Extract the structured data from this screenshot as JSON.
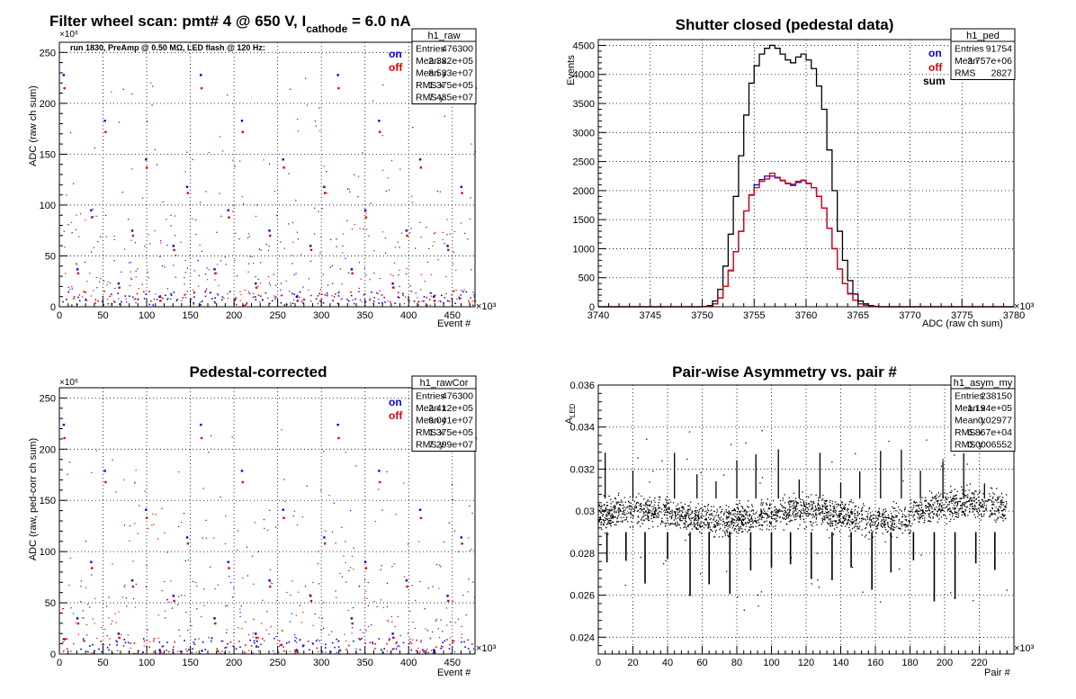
{
  "chart_data": [
    {
      "type": "scatter",
      "title": "Filter wheel scan: pmt#   4 @   650 V, I",
      "title_sub": "cathode",
      "title_tail": " = 6.0 nA",
      "subtitle": "run 1830, PreAmp @ 0.50 MΩ, LED flash @  120 Hz:",
      "xlabel": "Event #",
      "ylabel": "ADC (raw ch sum)",
      "x_exponent": "×10³",
      "y_exponent": "×10⁶",
      "xlim": [
        0,
        476
      ],
      "ylim": [
        0,
        260
      ],
      "xticks": [
        0,
        50,
        100,
        150,
        200,
        250,
        300,
        350,
        400,
        450
      ],
      "yticks": [
        0,
        50,
        100,
        150,
        200,
        250
      ],
      "grid": true,
      "legend": [
        {
          "label": "on",
          "color": "#0000dd"
        },
        {
          "label": "off",
          "color": "#dd0000"
        }
      ],
      "stats_box": {
        "name": "h1_raw",
        "rows": [
          [
            "Entries",
            "476300"
          ],
          [
            "Mean x",
            "2.382e+05"
          ],
          [
            "Mean y",
            "8.533e+07"
          ],
          [
            "RMS x",
            "1.375e+05"
          ],
          [
            "RMS y",
            "7.435e+07"
          ]
        ]
      },
      "levels_on": [
        228,
        183,
        145,
        118,
        95,
        75,
        60,
        37,
        23,
        10
      ],
      "levels_off": [
        215,
        172,
        137,
        112,
        88,
        70,
        56,
        33,
        19,
        6
      ]
    },
    {
      "type": "histogram",
      "title": "Shutter closed (pedestal data)",
      "xlabel": "ADC (raw ch sum)",
      "ylabel": "Events",
      "x_exponent": "×10³",
      "xlim": [
        3740,
        3780
      ],
      "ylim": [
        0,
        4600
      ],
      "xticks": [
        3740,
        3745,
        3750,
        3755,
        3760,
        3765,
        3770,
        3775,
        3780
      ],
      "yticks": [
        0,
        500,
        1000,
        1500,
        2000,
        2500,
        3000,
        3500,
        4000,
        4500
      ],
      "grid": true,
      "legend": [
        {
          "label": "on",
          "color": "#0000dd"
        },
        {
          "label": "off",
          "color": "#dd0000"
        },
        {
          "label": "sum",
          "color": "#000000"
        }
      ],
      "stats_box": {
        "name": "h1_ped",
        "rows": [
          [
            "Entries",
            "91754"
          ],
          [
            "Mean",
            "3.757e+06"
          ],
          [
            "RMS",
            "2827"
          ]
        ]
      },
      "bin_width": 0.5,
      "bins_start": 3750,
      "series": [
        {
          "name": "sum",
          "color": "#000000",
          "values": [
            5,
            20,
            100,
            300,
            700,
            1250,
            1900,
            2600,
            3300,
            3850,
            4150,
            4350,
            4450,
            4500,
            4450,
            4350,
            4250,
            4200,
            4300,
            4350,
            4250,
            4100,
            3800,
            3400,
            2700,
            2000,
            1300,
            800,
            450,
            220,
            100,
            50,
            20,
            8
          ]
        },
        {
          "name": "on",
          "color": "#0000dd",
          "values": [
            2,
            10,
            50,
            150,
            350,
            620,
            950,
            1300,
            1650,
            1920,
            2100,
            2190,
            2250,
            2250,
            2220,
            2170,
            2120,
            2090,
            2140,
            2180,
            2120,
            2050,
            1900,
            1700,
            1350,
            1000,
            650,
            400,
            230,
            110,
            50,
            25,
            10,
            4
          ]
        },
        {
          "name": "off",
          "color": "#dd0000",
          "values": [
            3,
            10,
            50,
            150,
            350,
            630,
            950,
            1300,
            1650,
            1930,
            2050,
            2160,
            2200,
            2300,
            2230,
            2180,
            2130,
            2110,
            2160,
            2170,
            2130,
            2050,
            1900,
            1700,
            1350,
            1000,
            650,
            400,
            220,
            110,
            50,
            25,
            10,
            4
          ]
        }
      ]
    },
    {
      "type": "scatter",
      "title": "Pedestal-corrected",
      "xlabel": "Event #",
      "ylabel": "ADC (raw, ped-corr ch sum)",
      "x_exponent": "×10³",
      "y_exponent": "×10⁶",
      "xlim": [
        0,
        476
      ],
      "ylim": [
        0,
        260
      ],
      "xticks": [
        0,
        50,
        100,
        150,
        200,
        250,
        300,
        350,
        400,
        450
      ],
      "yticks": [
        0,
        50,
        100,
        150,
        200,
        250
      ],
      "grid": true,
      "legend": [
        {
          "label": "on",
          "color": "#0000dd"
        },
        {
          "label": "off",
          "color": "#dd0000"
        }
      ],
      "stats_box": {
        "name": "h1_rawCor",
        "rows": [
          [
            "Entries",
            "476300"
          ],
          [
            "Mean x",
            "2.412e+05"
          ],
          [
            "Mean y",
            "9.041e+07"
          ],
          [
            "RMS x",
            "1.375e+05"
          ],
          [
            "RMS y",
            "7.299e+07"
          ]
        ]
      },
      "levels_on": [
        224,
        179,
        141,
        114,
        90,
        72,
        57,
        35,
        20,
        4
      ],
      "levels_off": [
        211,
        168,
        133,
        108,
        84,
        66,
        52,
        30,
        16,
        2
      ]
    },
    {
      "type": "scatter",
      "title": "Pair-wise Asymmetry vs. pair #",
      "xlabel": "Pair #",
      "ylabel": "A",
      "ylabel_sub": "LED",
      "x_exponent": "×10³",
      "xlim": [
        0,
        240
      ],
      "ylim": [
        0.0232,
        0.036
      ],
      "xticks": [
        0,
        20,
        40,
        60,
        80,
        100,
        120,
        140,
        160,
        180,
        200,
        220
      ],
      "yticks": [
        0.024,
        0.026,
        0.028,
        0.03,
        0.032,
        0.034,
        0.036
      ],
      "grid": true,
      "stats_box": {
        "name": "h1_asym_my",
        "rows": [
          [
            "Entries",
            "238150"
          ],
          [
            "Mean x",
            "1.194e+05"
          ],
          [
            "Mean y",
            "0.02977"
          ],
          [
            "RMS x",
            "6.867e+04"
          ],
          [
            "RMS y",
            "0.0006552"
          ]
        ]
      },
      "baseline": 0.0298,
      "spikes_down": [
        5,
        16,
        27,
        40,
        53,
        64,
        76,
        88,
        100,
        111,
        123,
        135,
        146,
        158,
        169,
        182,
        194,
        206,
        218,
        229
      ],
      "spikes_up": [
        4,
        20,
        44,
        57,
        68,
        80,
        91,
        104,
        116,
        128,
        140,
        151,
        163,
        175,
        186,
        199,
        211,
        223
      ]
    }
  ]
}
